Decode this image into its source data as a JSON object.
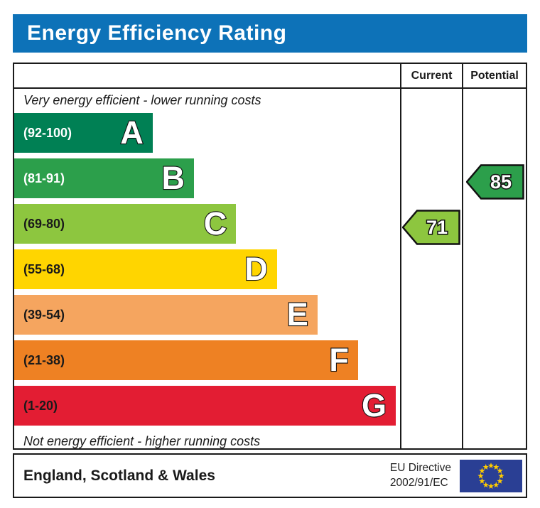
{
  "title": "Energy Efficiency Rating",
  "table": {
    "columns": [
      "Current",
      "Potential"
    ],
    "top_note": "Very energy efficient - lower running costs",
    "bottom_note": "Not energy efficient - higher running costs"
  },
  "chart_data": {
    "type": "epc-energy-rating-bands",
    "title": "Energy Efficiency Rating",
    "bands": [
      {
        "letter": "A",
        "range": "(92-100)",
        "min": 92,
        "max": 100,
        "color": "#008054",
        "range_text_color": "#ffffff",
        "width_pct": 35.9
      },
      {
        "letter": "B",
        "range": "(81-91)",
        "min": 81,
        "max": 91,
        "color": "#2c9f4b",
        "range_text_color": "#ffffff",
        "width_pct": 46.6
      },
      {
        "letter": "C",
        "range": "(69-80)",
        "min": 69,
        "max": 80,
        "color": "#8dc63f",
        "range_text_color": "#1a1a1a",
        "width_pct": 57.5
      },
      {
        "letter": "D",
        "range": "(55-68)",
        "min": 55,
        "max": 68,
        "color": "#ffd500",
        "range_text_color": "#1a1a1a",
        "width_pct": 68.1
      },
      {
        "letter": "E",
        "range": "(39-54)",
        "min": 39,
        "max": 54,
        "color": "#f5a55f",
        "range_text_color": "#1a1a1a",
        "width_pct": 78.6
      },
      {
        "letter": "F",
        "range": "(21-38)",
        "min": 21,
        "max": 38,
        "color": "#ee8123",
        "range_text_color": "#1a1a1a",
        "width_pct": 89.1
      },
      {
        "letter": "G",
        "range": "(1-20)",
        "min": 1,
        "max": 20,
        "color": "#e31d33",
        "range_text_color": "#1a1a1a",
        "width_pct": 98.9
      }
    ],
    "current": {
      "value": 71,
      "band": "C",
      "color": "#8dc63f"
    },
    "potential": {
      "value": 85,
      "band": "B",
      "color": "#2c9f4b"
    }
  },
  "footer": {
    "region": "England, Scotland & Wales",
    "directive": [
      "EU Directive",
      "2002/91/EC"
    ],
    "eu_flag": {
      "background": "#2a3f94",
      "star_color": "#ffcc00",
      "star_count": 12
    }
  },
  "colors": {
    "header_bg": "#0d72b8",
    "header_text": "#ffffff",
    "border": "#1a1a1a"
  }
}
